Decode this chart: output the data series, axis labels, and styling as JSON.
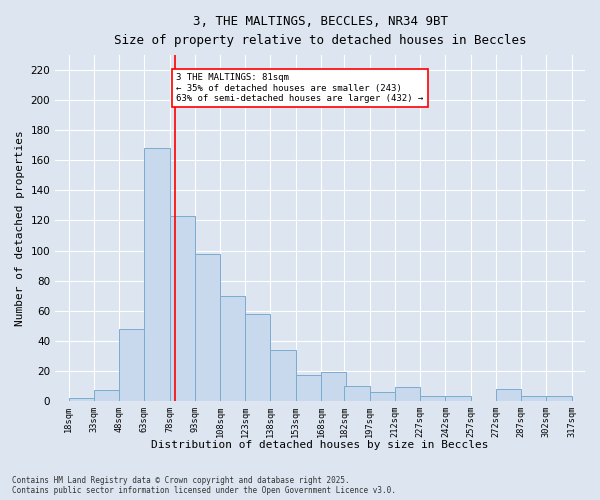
{
  "title_line1": "3, THE MALTINGS, BECCLES, NR34 9BT",
  "title_line2": "Size of property relative to detached houses in Beccles",
  "xlabel": "Distribution of detached houses by size in Beccles",
  "ylabel": "Number of detached properties",
  "bar_color": "#c9d9ed",
  "bar_edge_color": "#7aabcf",
  "vline_x": 81,
  "vline_color": "red",
  "annotation_text": "3 THE MALTINGS: 81sqm\n← 35% of detached houses are smaller (243)\n63% of semi-detached houses are larger (432) →",
  "annotation_box_color": "white",
  "annotation_box_edge_color": "red",
  "bins_left_edges": [
    18,
    33,
    48,
    63,
    78,
    93,
    108,
    123,
    138,
    153,
    168,
    182,
    197,
    212,
    227,
    242,
    257,
    272,
    287,
    302
  ],
  "bin_width": 15,
  "bar_heights": [
    2,
    7,
    48,
    168,
    123,
    98,
    70,
    58,
    34,
    17,
    19,
    10,
    6,
    9,
    3,
    3,
    0,
    8,
    3,
    3
  ],
  "xlim_left": 10,
  "xlim_right": 325,
  "ylim_top": 230,
  "yticks": [
    0,
    20,
    40,
    60,
    80,
    100,
    120,
    140,
    160,
    180,
    200,
    220
  ],
  "tick_labels": [
    "18sqm",
    "33sqm",
    "48sqm",
    "63sqm",
    "78sqm",
    "93sqm",
    "108sqm",
    "123sqm",
    "138sqm",
    "153sqm",
    "168sqm",
    "182sqm",
    "197sqm",
    "212sqm",
    "227sqm",
    "242sqm",
    "257sqm",
    "272sqm",
    "287sqm",
    "302sqm",
    "317sqm"
  ],
  "footer_text": "Contains HM Land Registry data © Crown copyright and database right 2025.\nContains public sector information licensed under the Open Government Licence v3.0.",
  "background_color": "#dde5f0",
  "plot_bg_color": "#dde5f0"
}
